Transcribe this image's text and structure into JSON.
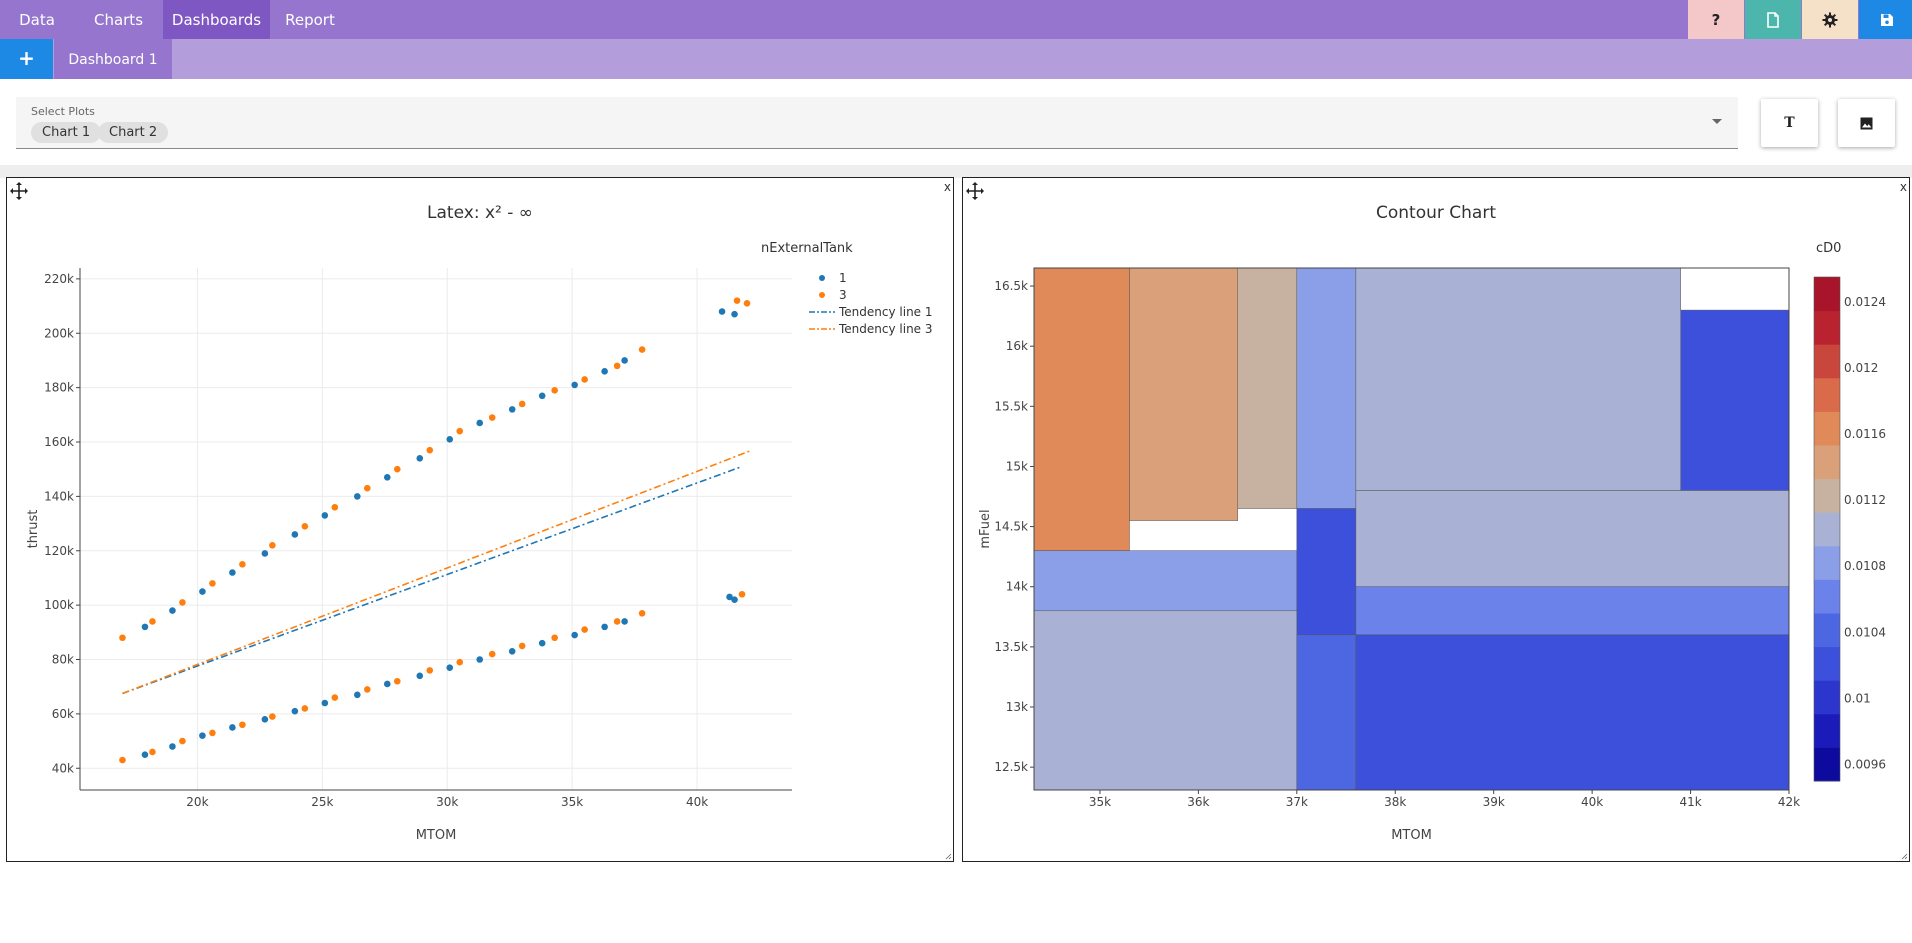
{
  "nav": {
    "items": [
      {
        "label": "Data"
      },
      {
        "label": "Charts"
      },
      {
        "label": "Dashboards"
      },
      {
        "label": "Report"
      }
    ],
    "active": "Dashboards",
    "icons": [
      {
        "name": "help-icon",
        "glyph": "?",
        "bg": "#f4c7c9"
      },
      {
        "name": "new-file-icon",
        "glyph": "file",
        "bg": "#4db6ac"
      },
      {
        "name": "settings-icon",
        "glyph": "gear",
        "bg": "#f5e1c7"
      },
      {
        "name": "save-icon",
        "glyph": "disk",
        "bg": "#1e88e5"
      }
    ]
  },
  "tabs": {
    "add_label": "+",
    "items": [
      {
        "label": "Dashboard 1"
      }
    ]
  },
  "select": {
    "label": "Select Plots",
    "chips": [
      {
        "label": "Chart 1"
      },
      {
        "label": "Chart 2"
      }
    ]
  },
  "buttons": {
    "text_label": "T"
  },
  "panels": [
    {
      "close_label": "x"
    },
    {
      "close_label": "x"
    }
  ],
  "colors": {
    "series1": "#1f77b4",
    "series3": "#ff7f0e",
    "accent": "#9575cd"
  },
  "chart_data": [
    {
      "type": "scatter",
      "title": "Latex: x² - ∞",
      "xlabel": "MTOM",
      "ylabel": "thrust",
      "xlim": [
        15300,
        43800
      ],
      "ylim": [
        32000,
        224000
      ],
      "xticks": [
        {
          "v": 20000,
          "label": "20k"
        },
        {
          "v": 25000,
          "label": "25k"
        },
        {
          "v": 30000,
          "label": "30k"
        },
        {
          "v": 35000,
          "label": "35k"
        },
        {
          "v": 40000,
          "label": "40k"
        }
      ],
      "yticks": [
        {
          "v": 40000,
          "label": "40k"
        },
        {
          "v": 60000,
          "label": "60k"
        },
        {
          "v": 80000,
          "label": "80k"
        },
        {
          "v": 100000,
          "label": "100k"
        },
        {
          "v": 120000,
          "label": "120k"
        },
        {
          "v": 140000,
          "label": "140k"
        },
        {
          "v": 160000,
          "label": "160k"
        },
        {
          "v": 180000,
          "label": "180k"
        },
        {
          "v": 200000,
          "label": "200k"
        },
        {
          "v": 220000,
          "label": "220k"
        }
      ],
      "grid": true,
      "legend": {
        "title": "nExternalTank",
        "position": "top-right"
      },
      "series": [
        {
          "name": "1",
          "mode": "markers",
          "x": [
            17900,
            19000,
            20200,
            21400,
            22700,
            23900,
            25100,
            26400,
            27600,
            28900,
            30100,
            31300,
            32600,
            33800,
            35100,
            36300,
            37100,
            17900,
            19000,
            20200,
            21400,
            22700,
            23900,
            25100,
            26400,
            27600,
            28900,
            30100,
            31300,
            32600,
            33800,
            35100,
            36300,
            37100,
            41000,
            41500,
            41300,
            41500
          ],
          "y": [
            92000,
            98000,
            105000,
            112000,
            119000,
            126000,
            133000,
            140000,
            147000,
            154000,
            161000,
            167000,
            172000,
            177000,
            181000,
            186000,
            190000,
            45000,
            48000,
            52000,
            55000,
            58000,
            61000,
            64000,
            67000,
            71000,
            74000,
            77000,
            80000,
            83000,
            86000,
            89000,
            92000,
            94000,
            208000,
            207000,
            103000,
            102000
          ]
        },
        {
          "name": "3",
          "mode": "markers",
          "x": [
            17000,
            18200,
            19400,
            20600,
            21800,
            23000,
            24300,
            25500,
            26800,
            28000,
            29300,
            30500,
            31800,
            33000,
            34300,
            35500,
            36800,
            37800,
            17000,
            18200,
            19400,
            20600,
            21800,
            23000,
            24300,
            25500,
            26800,
            28000,
            29300,
            30500,
            31800,
            33000,
            34300,
            35500,
            36800,
            37800,
            41600,
            42000,
            41800
          ],
          "y": [
            88000,
            94000,
            101000,
            108000,
            115000,
            122000,
            129000,
            136000,
            143000,
            150000,
            157000,
            164000,
            169000,
            174000,
            179000,
            183000,
            188000,
            194000,
            43000,
            46000,
            50000,
            53000,
            56000,
            59000,
            62000,
            66000,
            69000,
            72000,
            76000,
            79000,
            82000,
            85000,
            88000,
            91000,
            94000,
            97000,
            212000,
            211000,
            104000
          ]
        },
        {
          "name": "Tendency line 1",
          "mode": "dashdot",
          "x": [
            17000,
            41800
          ],
          "y": [
            67500,
            151000
          ]
        },
        {
          "name": "Tendency line 3",
          "mode": "dashdot",
          "x": [
            17000,
            42200
          ],
          "y": [
            67500,
            157000
          ]
        }
      ]
    },
    {
      "type": "heatmap",
      "subtype": "contour",
      "title": "Contour Chart",
      "xlabel": "MTOM",
      "ylabel": "mFuel",
      "xlim": [
        34330,
        42000
      ],
      "ylim": [
        12310,
        16650
      ],
      "xticks": [
        {
          "v": 35000,
          "label": "35k"
        },
        {
          "v": 36000,
          "label": "36k"
        },
        {
          "v": 37000,
          "label": "37k"
        },
        {
          "v": 38000,
          "label": "38k"
        },
        {
          "v": 39000,
          "label": "39k"
        },
        {
          "v": 40000,
          "label": "40k"
        },
        {
          "v": 41000,
          "label": "41k"
        },
        {
          "v": 42000,
          "label": "42k"
        }
      ],
      "yticks": [
        {
          "v": 12500,
          "label": "12.5k"
        },
        {
          "v": 13000,
          "label": "13k"
        },
        {
          "v": 13500,
          "label": "13.5k"
        },
        {
          "v": 14000,
          "label": "14k"
        },
        {
          "v": 14500,
          "label": "14.5k"
        },
        {
          "v": 15000,
          "label": "15k"
        },
        {
          "v": 15500,
          "label": "15.5k"
        },
        {
          "v": 16000,
          "label": "16k"
        },
        {
          "v": 16500,
          "label": "16.5k"
        }
      ],
      "colorbar": {
        "title": "cD0",
        "range": [
          0.0095,
          0.01255
        ],
        "ticks": [
          {
            "v": 0.0096,
            "label": "0.0096"
          },
          {
            "v": 0.01,
            "label": "0.01"
          },
          {
            "v": 0.0104,
            "label": "0.0104"
          },
          {
            "v": 0.0108,
            "label": "0.0108"
          },
          {
            "v": 0.0112,
            "label": "0.0112"
          },
          {
            "v": 0.0116,
            "label": "0.0116"
          },
          {
            "v": 0.012,
            "label": "0.012"
          },
          {
            "v": 0.0124,
            "label": "0.0124"
          }
        ],
        "colors": [
          "#0c0b9e",
          "#1a1bb8",
          "#2d36cc",
          "#3c50db",
          "#4d67e3",
          "#6a82ea",
          "#8a9fe8",
          "#a9b2d4",
          "#c7b1a0",
          "#daa07a",
          "#e08a5a",
          "#d96a4a",
          "#c9463c",
          "#b92330",
          "#a8142a"
        ]
      },
      "regions": [
        {
          "x": [
            34330,
            35300
          ],
          "y": [
            14300,
            16650
          ],
          "z": 0.0116
        },
        {
          "x": [
            35300,
            36400
          ],
          "y": [
            14550,
            16650
          ],
          "z": 0.0114
        },
        {
          "x": [
            36400,
            37000
          ],
          "y": [
            14650,
            16650
          ],
          "z": 0.0112
        },
        {
          "x": [
            37000,
            37600
          ],
          "y": [
            14650,
            16650
          ],
          "z": 0.0109
        },
        {
          "x": [
            37600,
            40900
          ],
          "y": [
            14800,
            16650
          ],
          "z": 0.011
        },
        {
          "x": [
            40900,
            42000
          ],
          "y": [
            14800,
            16300
          ],
          "z": 0.0103
        },
        {
          "x": [
            34330,
            37000
          ],
          "y": [
            13800,
            14300
          ],
          "z": 0.0109
        },
        {
          "x": [
            37000,
            37600
          ],
          "y": [
            13600,
            14650
          ],
          "z": 0.0103
        },
        {
          "x": [
            37600,
            42000
          ],
          "y": [
            14000,
            14800
          ],
          "z": 0.011
        },
        {
          "x": [
            37600,
            42000
          ],
          "y": [
            13600,
            14000
          ],
          "z": 0.0107
        },
        {
          "x": [
            34330,
            37000
          ],
          "y": [
            12310,
            13800
          ],
          "z": 0.0111
        },
        {
          "x": [
            37000,
            37600
          ],
          "y": [
            12310,
            13600
          ],
          "z": 0.0105
        },
        {
          "x": [
            37600,
            42000
          ],
          "y": [
            12310,
            13600
          ],
          "z": 0.0103
        }
      ]
    }
  ]
}
